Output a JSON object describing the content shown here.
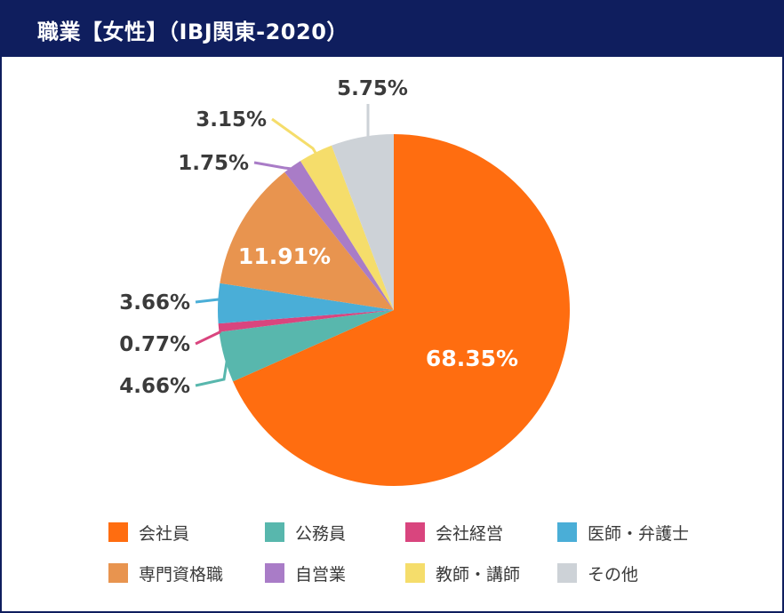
{
  "title": "職業【女性】（IBJ関東-2020）",
  "chart_data": {
    "type": "pie",
    "start": "12 o'clock",
    "direction": "clockwise",
    "slices": [
      {
        "name": "会社員",
        "value": 68.35,
        "label": "68.35%",
        "color": "#ff6d10"
      },
      {
        "name": "公務員",
        "value": 4.66,
        "label": "4.66%",
        "color": "#58b7ad"
      },
      {
        "name": "会社経営",
        "value": 0.77,
        "label": "0.77%",
        "color": "#d9457e"
      },
      {
        "name": "医師・弁護士",
        "value": 3.66,
        "label": "3.66%",
        "color": "#4aaed7"
      },
      {
        "name": "専門資格職",
        "value": 11.91,
        "label": "11.91%",
        "color": "#e8944f"
      },
      {
        "name": "自営業",
        "value": 1.75,
        "label": "1.75%",
        "color": "#a97cc7"
      },
      {
        "name": "教師・講師",
        "value": 3.15,
        "label": "3.15%",
        "color": "#f5dd6b"
      },
      {
        "name": "その他",
        "value": 5.75,
        "label": "5.75%",
        "color": "#cdd2d7"
      }
    ]
  },
  "legend": [
    {
      "label": "会社員",
      "color": "#ff6d10"
    },
    {
      "label": "公務員",
      "color": "#58b7ad"
    },
    {
      "label": "会社経営",
      "color": "#d9457e"
    },
    {
      "label": "医師・弁護士",
      "color": "#4aaed7"
    },
    {
      "label": "専門資格職",
      "color": "#e8944f"
    },
    {
      "label": "自営業",
      "color": "#a97cc7"
    },
    {
      "label": "教師・講師",
      "color": "#f5dd6b"
    },
    {
      "label": "その他",
      "color": "#cdd2d7"
    }
  ]
}
